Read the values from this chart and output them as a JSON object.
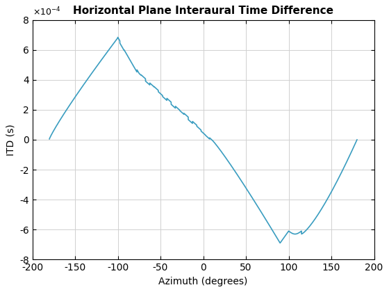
{
  "title": "Horizontal Plane Interaural Time Difference",
  "xlabel": "Azimuth (degrees)",
  "ylabel": "ITD (s)",
  "xlim": [
    -200,
    200
  ],
  "ylim": [
    -0.0008,
    0.0008
  ],
  "xticks": [
    -200,
    -150,
    -100,
    -50,
    0,
    50,
    100,
    150,
    200
  ],
  "ytick_labels": [
    "-8",
    "-6",
    "-4",
    "-2",
    "0",
    "2",
    "4",
    "6",
    "8"
  ],
  "ytick_values": [
    -0.0008,
    -0.0006,
    -0.0004,
    -0.0002,
    0,
    0.0002,
    0.0004,
    0.0006,
    0.0008
  ],
  "line_color": "#3A9DC0",
  "line_width": 1.2,
  "grid_color": "#D0D0D0",
  "background_color": "#FFFFFF",
  "exponent_label": "×10⁻⁴",
  "title_fontsize": 11,
  "label_fontsize": 10,
  "tick_fontsize": 10
}
